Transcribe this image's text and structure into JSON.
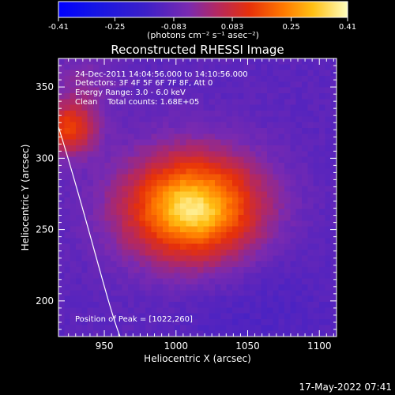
{
  "colorbar": {
    "tick_labels": [
      "-0.41",
      "-0.25",
      "-0.083",
      "0.083",
      "0.25",
      "0.41"
    ],
    "tick_values": [
      -0.41,
      -0.25,
      -0.083,
      0.083,
      0.25,
      0.41
    ],
    "range": [
      -0.41,
      0.41
    ],
    "unit_label": "(photons cm⁻² s⁻¹ asec⁻²)"
  },
  "chart_data": {
    "type": "heatmap",
    "title": "Reconstructed RHESSI Image",
    "xlabel": "Heliocentric X (arcsec)",
    "ylabel": "Heliocentric Y (arcsec)",
    "xlim": [
      918,
      1112
    ],
    "ylim": [
      175,
      370
    ],
    "x_ticks": [
      950,
      1000,
      1050,
      1100
    ],
    "y_ticks": [
      200,
      250,
      300,
      350
    ],
    "peak": {
      "x": 1022,
      "y": 260,
      "value": 0.41
    },
    "sources": [
      {
        "x": 1005,
        "y": 266,
        "value": 0.41
      },
      {
        "x": 1020,
        "y": 260,
        "value": 0.36
      },
      {
        "x": 925,
        "y": 320,
        "value": 0.16
      }
    ],
    "limb_curve": [
      [
        918,
        322
      ],
      [
        938,
        258
      ],
      [
        952,
        198
      ],
      [
        961,
        175
      ]
    ],
    "info_lines": [
      "24-Dec-2011 14:04:56.000 to 14:10:56.000",
      "Detectors: 3F 4F 5F 6F 7F 8F, Att 0",
      "Energy Range: 3.0 - 6.0 keV",
      "Clean    Total counts: 1.68E+05"
    ],
    "peak_label": "Position of Peak = [1022,260]"
  },
  "footer": {
    "timestamp": "17-May-2022 07:41"
  }
}
